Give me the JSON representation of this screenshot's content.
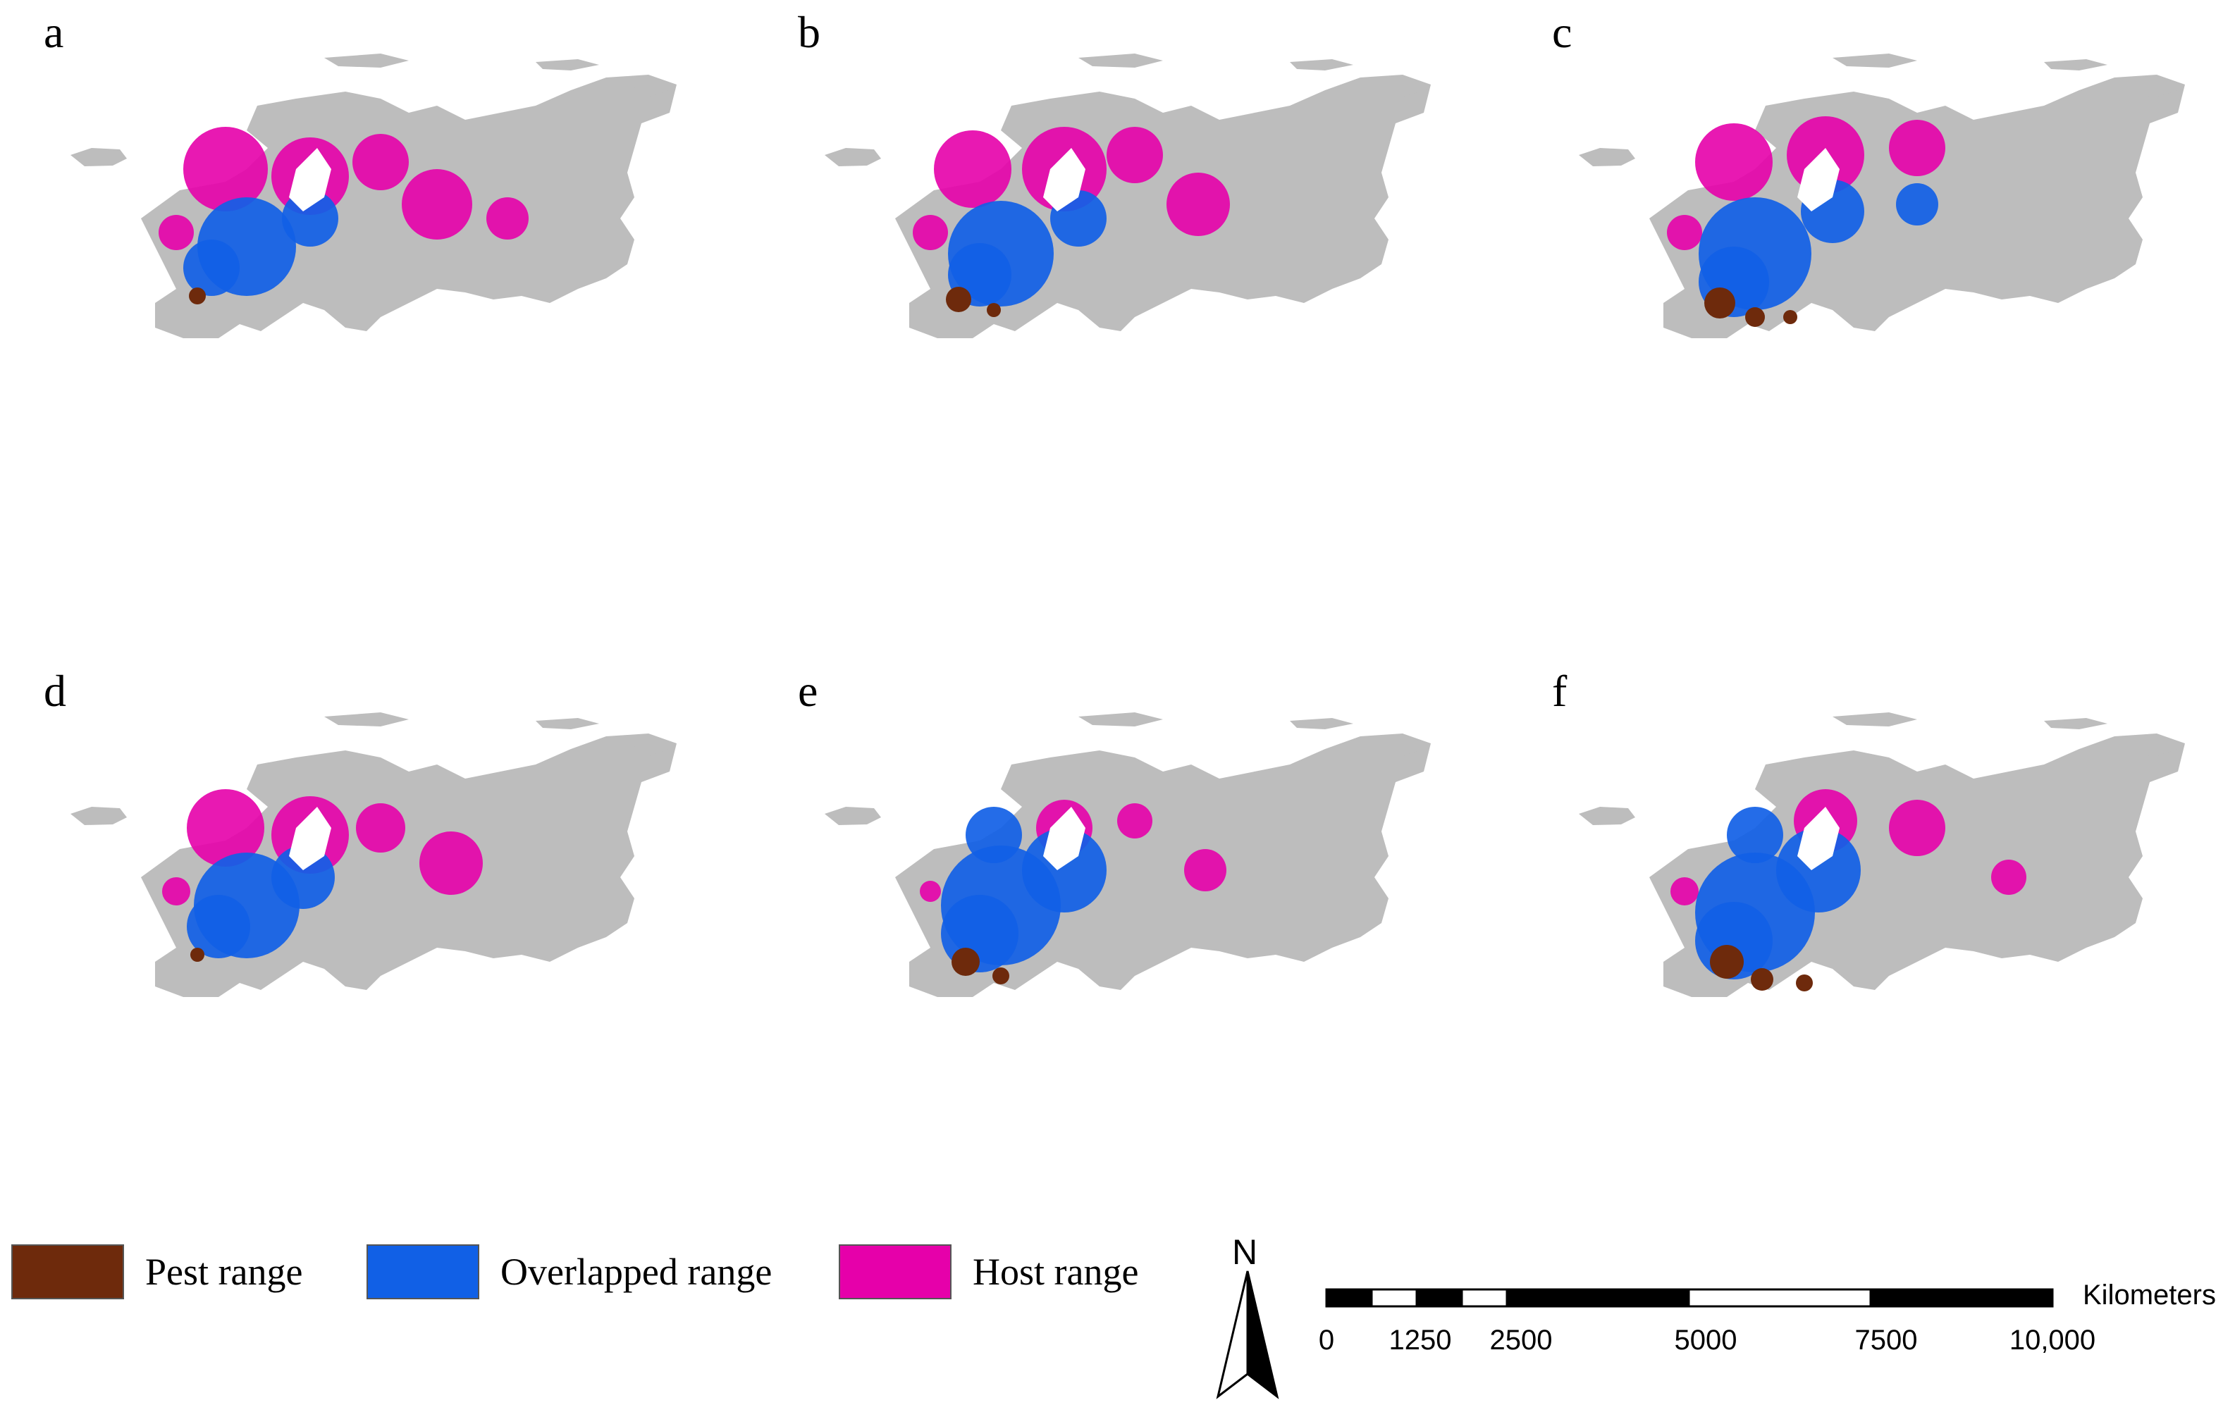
{
  "figure": {
    "panels": [
      {
        "label": "a",
        "variant": 0
      },
      {
        "label": "b",
        "variant": 1
      },
      {
        "label": "c",
        "variant": 2
      },
      {
        "label": "d",
        "variant": 3
      },
      {
        "label": "e",
        "variant": 4
      },
      {
        "label": "f",
        "variant": 5
      }
    ],
    "colors": {
      "land": "#bdbdbd",
      "pest": "#6e2a0c",
      "overlap": "#1160e6",
      "host": "#e600aa"
    }
  },
  "legend": {
    "items": [
      {
        "label": "Pest range",
        "color": "#6e2a0c"
      },
      {
        "label": "Overlapped range",
        "color": "#1160e6"
      },
      {
        "label": "Host range",
        "color": "#e600aa"
      }
    ]
  },
  "north_arrow": {
    "letter": "N",
    "icon": "north-arrow-icon"
  },
  "scale_bar": {
    "unit": "Kilometers",
    "ticks": [
      "0",
      "1250",
      "2500",
      "5000",
      "7500",
      "10,000"
    ],
    "tick_values": [
      0,
      1250,
      2500,
      5000,
      7500,
      10000
    ]
  }
}
